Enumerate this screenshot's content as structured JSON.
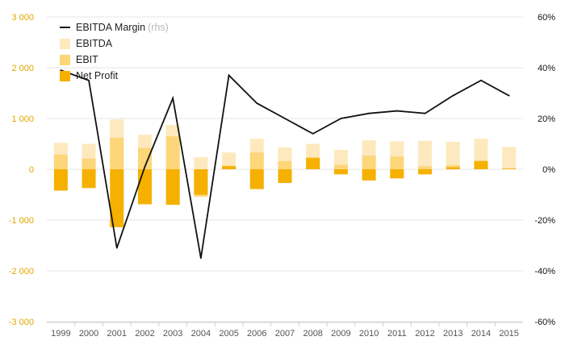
{
  "colors": {
    "ebitda": "#fde9bd",
    "ebit": "#fdd67a",
    "net_profit": "#f5b000",
    "margin_line": "#111111",
    "left_axis_text": "#e0a800",
    "right_axis_text": "#111111",
    "x_axis_text": "#555555",
    "grid": "#e6e6e6"
  },
  "legend": {
    "margin_label": "EBITDA Margin",
    "margin_suffix": "(rhs)",
    "ebitda_label": "EBITDA",
    "ebit_label": "EBIT",
    "net_profit_label": "Net Profit"
  },
  "chart_data": {
    "type": "bar",
    "categories": [
      "1999",
      "2000",
      "2001",
      "2002",
      "2003",
      "2004",
      "2005",
      "2006",
      "2007",
      "2008",
      "2009",
      "2010",
      "2011",
      "2012",
      "2013",
      "2014",
      "2015"
    ],
    "series": [
      {
        "name": "EBITDA",
        "values": [
          520,
          500,
          980,
          680,
          870,
          240,
          330,
          600,
          430,
          500,
          380,
          570,
          550,
          560,
          540,
          600,
          440
        ]
      },
      {
        "name": "EBIT",
        "values": [
          290,
          210,
          620,
          420,
          650,
          -540,
          70,
          330,
          160,
          240,
          90,
          270,
          250,
          60,
          80,
          170,
          20
        ]
      },
      {
        "name": "Net Profit",
        "values": [
          -420,
          -370,
          -1140,
          -690,
          -700,
          -500,
          60,
          -390,
          -270,
          220,
          -100,
          -220,
          -180,
          -100,
          40,
          160,
          10
        ]
      },
      {
        "name": "EBITDA Margin",
        "axis": "right",
        "values": [
          39,
          35,
          -31,
          1,
          28,
          -35,
          37,
          26,
          20,
          14,
          20,
          22,
          23,
          22,
          29,
          35,
          29
        ]
      }
    ],
    "left_axis": {
      "ylim": [
        -3000,
        3000
      ],
      "ticks": [
        3000,
        2000,
        1000,
        0,
        -1000,
        -2000,
        -3000
      ],
      "tick_labels": [
        "3 000",
        "2 000",
        "1 000",
        "0",
        "-1 000",
        "-2 000",
        "-3 000"
      ]
    },
    "right_axis": {
      "ylim": [
        -60,
        60
      ],
      "ticks": [
        60,
        40,
        20,
        0,
        -20,
        -40,
        -60
      ],
      "tick_labels": [
        "60%",
        "40%",
        "20%",
        "0%",
        "-20%",
        "-40%",
        "-60%"
      ]
    },
    "grid": true,
    "legend_position": "top-left"
  }
}
